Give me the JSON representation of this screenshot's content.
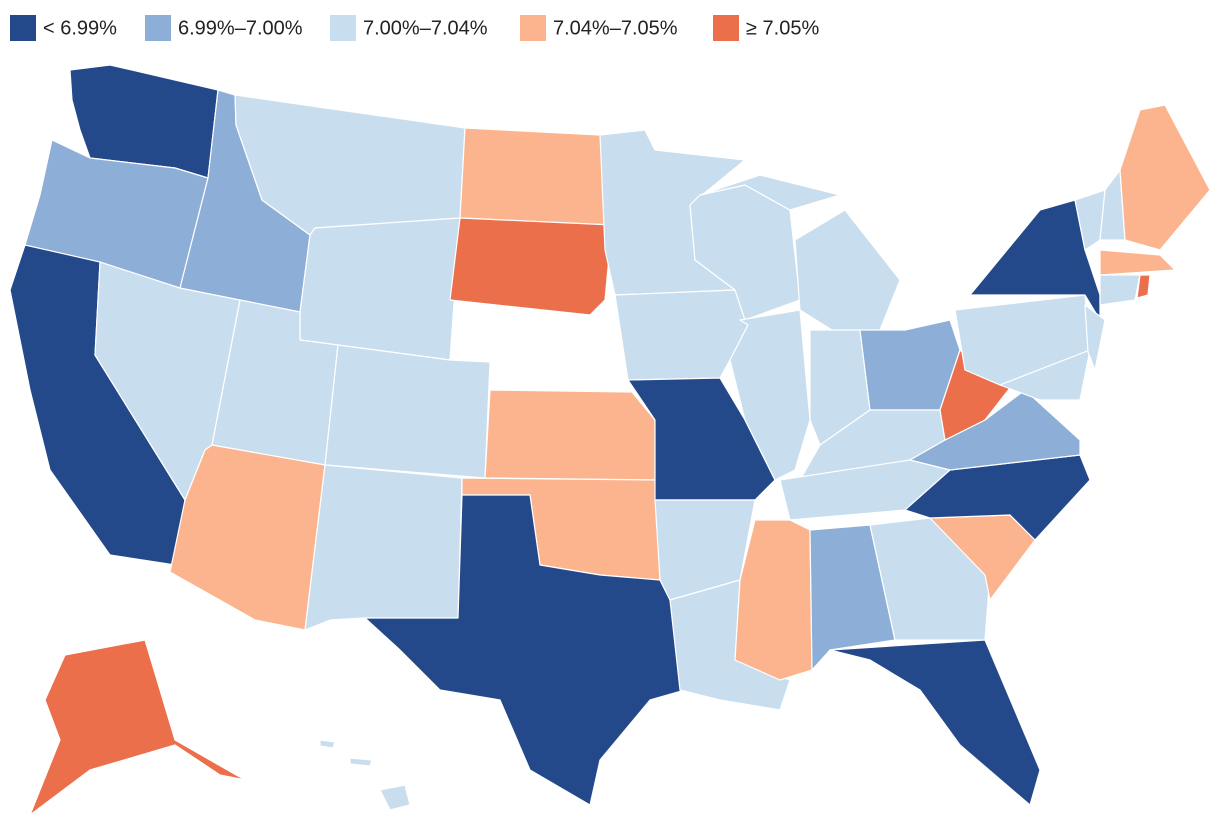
{
  "legend": [
    {
      "label": "< 6.99%",
      "color": "#24498a"
    },
    {
      "label": "6.99%–7.00%",
      "color": "#8daed6"
    },
    {
      "label": "7.00%–7.04%",
      "color": "#c8ddee"
    },
    {
      "label": "7.04%–7.05%",
      "color": "#fbb48d"
    },
    {
      "label": "≥ 7.05%",
      "color": "#ec6f4c"
    }
  ],
  "regions": [
    {
      "class": 0
    },
    {
      "class": 1
    },
    {
      "class": 0
    },
    {
      "class": 2
    },
    {
      "class": 1
    },
    {
      "class": 2
    },
    {
      "class": 2
    },
    {
      "class": 2
    },
    {
      "class": 3
    },
    {
      "class": 2
    },
    {
      "class": 2
    },
    {
      "class": 3
    },
    {
      "class": 4
    },
    {
      "class": 3
    },
    {
      "class": 3
    },
    {
      "class": 0
    },
    {
      "class": 2
    },
    {
      "class": 2
    },
    {
      "class": 0
    },
    {
      "class": 2
    },
    {
      "class": 2
    },
    {
      "class": 2
    },
    {
      "class": 2
    },
    {
      "class": 2
    },
    {
      "class": 2
    },
    {
      "class": 1
    },
    {
      "class": 2
    },
    {
      "class": 2
    },
    {
      "class": 3
    },
    {
      "class": 1
    },
    {
      "class": 2
    },
    {
      "class": 0
    },
    {
      "class": 3
    },
    {
      "class": 0
    },
    {
      "class": 1
    },
    {
      "class": 4
    },
    {
      "class": 2
    },
    {
      "class": 0
    },
    {
      "class": 2
    },
    {
      "class": 2
    },
    {
      "class": 2
    },
    {
      "class": 2
    },
    {
      "class": 4
    },
    {
      "class": 3
    },
    {
      "class": 2
    },
    {
      "class": 4
    },
    {
      "class": 4
    },
    {
      "class": 2
    },
    {
      "class": 3
    }
  ]
}
